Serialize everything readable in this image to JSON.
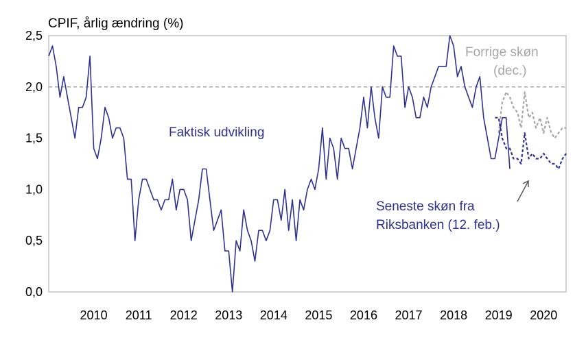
{
  "chart_data": {
    "type": "line",
    "ylabel": "CPIF, årlig ændring (%)",
    "ylim": [
      0,
      2.5
    ],
    "yticks": [
      0,
      0.5,
      1,
      1.5,
      2,
      2.5
    ],
    "ytick_labels": [
      "0,0",
      "0,5",
      "1,0",
      "1,5",
      "2,0",
      "2,5"
    ],
    "xlim": [
      2009.5,
      2021.0
    ],
    "xtick_labels": [
      "2010",
      "2011",
      "2012",
      "2013",
      "2014",
      "2015",
      "2016",
      "2017",
      "2018",
      "2019",
      "2020"
    ],
    "reference_line": {
      "y": 2.0,
      "style": "dashed",
      "color": "#a6a6a6"
    },
    "grid": false,
    "colors": {
      "actual": "#2e3192",
      "previous": "#a6a6a6",
      "arrow": "#595959"
    },
    "series": [
      {
        "name": "Faktisk udvikling",
        "style": "solid",
        "start": 2009.5,
        "step": 0.0833333,
        "values": [
          2.3,
          2.4,
          2.2,
          1.9,
          2.1,
          1.9,
          1.7,
          1.5,
          1.8,
          1.8,
          1.9,
          2.3,
          1.4,
          1.3,
          1.5,
          1.8,
          1.7,
          1.5,
          1.6,
          1.6,
          1.5,
          1.1,
          1.1,
          0.5,
          0.9,
          1.1,
          1.1,
          1.0,
          0.9,
          0.9,
          0.8,
          0.9,
          0.9,
          1.1,
          0.8,
          1.0,
          1.0,
          0.9,
          0.5,
          0.7,
          0.9,
          1.2,
          1.2,
          0.9,
          0.6,
          0.7,
          0.8,
          0.4,
          0.4,
          0.0,
          0.5,
          0.4,
          0.8,
          0.6,
          0.5,
          0.3,
          0.6,
          0.6,
          0.5,
          0.6,
          0.9,
          0.9,
          0.7,
          1.0,
          0.6,
          0.9,
          0.5,
          0.9,
          0.8,
          1.0,
          1.1,
          1.0,
          1.2,
          1.6,
          1.1,
          1.5,
          1.4,
          1.1,
          1.5,
          1.4,
          1.4,
          1.2,
          1.4,
          1.6,
          1.9,
          1.6,
          2.0,
          1.7,
          1.5,
          2.0,
          1.9,
          1.9,
          2.4,
          2.3,
          2.3,
          1.8,
          2.0,
          1.9,
          1.7,
          1.7,
          1.9,
          1.8,
          2.0,
          2.1,
          2.2,
          2.2,
          2.2,
          2.5,
          2.4,
          2.1,
          2.2,
          2.0,
          1.9,
          1.8,
          2.0,
          2.1,
          1.7,
          1.5,
          1.3,
          1.3,
          1.5,
          1.7,
          1.7,
          1.2
        ]
      },
      {
        "name": "Seneste skøn fra Riksbanken (12. feb.)",
        "style": "dashed",
        "x": [
          2019.42,
          2019.5,
          2019.58,
          2019.67,
          2019.75,
          2019.83,
          2019.92,
          2020.0,
          2020.08,
          2020.17,
          2020.25,
          2020.33,
          2020.42,
          2020.5,
          2020.58,
          2020.67,
          2020.75,
          2020.83,
          2020.92,
          2021.0
        ],
        "values": [
          1.7,
          1.7,
          1.5,
          1.4,
          1.4,
          1.3,
          1.3,
          1.25,
          1.55,
          1.3,
          1.35,
          1.3,
          1.3,
          1.35,
          1.3,
          1.25,
          1.25,
          1.2,
          1.3,
          1.35
        ]
      },
      {
        "name": "Forrige skøn (dec.)",
        "style": "dashed",
        "x": [
          2019.5,
          2019.58,
          2019.67,
          2019.75,
          2019.83,
          2019.92,
          2020.0,
          2020.08,
          2020.17,
          2020.25,
          2020.33,
          2020.42,
          2020.5,
          2020.58,
          2020.67,
          2020.75,
          2020.83,
          2020.92,
          2021.0
        ],
        "values": [
          1.55,
          1.85,
          1.95,
          1.9,
          1.8,
          1.75,
          1.6,
          1.95,
          1.7,
          1.75,
          1.6,
          1.7,
          1.55,
          1.7,
          1.55,
          1.5,
          1.55,
          1.6,
          1.6
        ]
      }
    ],
    "annotations": [
      {
        "text": "Faktisk udvikling",
        "color": "#2e3192"
      },
      {
        "text": "Forrige skøn",
        "color": "#a6a6a6"
      },
      {
        "text": "(dec.)",
        "color": "#a6a6a6"
      },
      {
        "text": "Seneste skøn fra",
        "color": "#2e3192"
      },
      {
        "text": "Riksbanken (12. feb.)",
        "color": "#2e3192"
      }
    ]
  }
}
